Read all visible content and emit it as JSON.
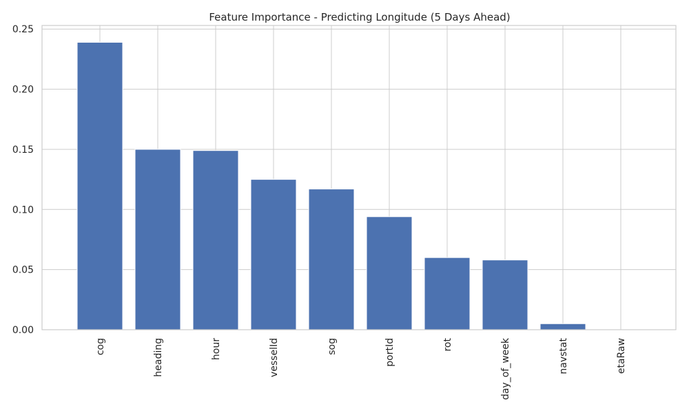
{
  "chart_data": {
    "type": "bar",
    "title": "Feature Importance - Predicting Longitude (5 Days Ahead)",
    "xlabel": "",
    "ylabel": "",
    "categories": [
      "cog",
      "heading",
      "hour",
      "vesselId",
      "sog",
      "portId",
      "rot",
      "day_of_week",
      "navstat",
      "etaRaw"
    ],
    "values": [
      0.239,
      0.15,
      0.149,
      0.125,
      0.117,
      0.094,
      0.06,
      0.058,
      0.005,
      0.0
    ],
    "ylim": [
      0,
      0.253
    ],
    "yticks": [
      0.0,
      0.05,
      0.1,
      0.15,
      0.2,
      0.25
    ],
    "ytick_labels": [
      "0.00",
      "0.05",
      "0.10",
      "0.15",
      "0.20",
      "0.25"
    ],
    "grid": true,
    "bar_color": "#4c72b0",
    "grid_color": "#cccccc"
  }
}
